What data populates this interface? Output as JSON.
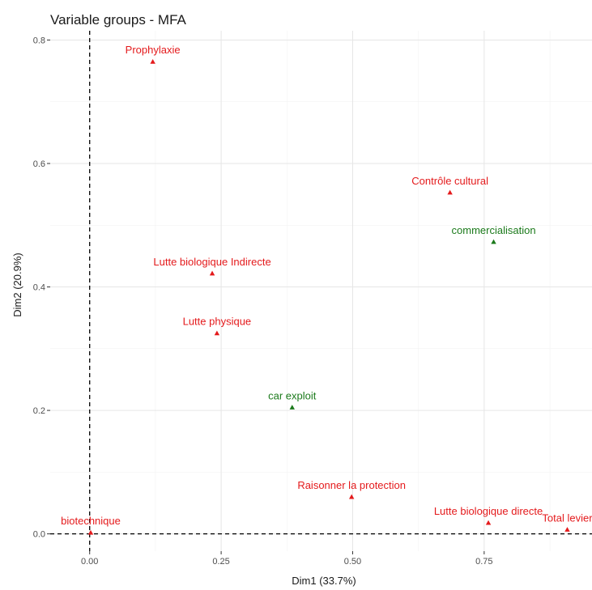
{
  "chart_data": {
    "type": "scatter",
    "title": "Variable groups - MFA",
    "xlabel": "Dim1 (33.7%)",
    "ylabel": "Dim2 (20.9%)",
    "xlim": [
      -0.075,
      0.955
    ],
    "ylim": [
      -0.028,
      0.815
    ],
    "xticks": [
      0.0,
      0.25,
      0.5,
      0.75
    ],
    "xtick_labels": [
      "0.00",
      "0.25",
      "0.50",
      "0.75"
    ],
    "yticks": [
      0.0,
      0.2,
      0.4,
      0.6,
      0.8
    ],
    "ytick_labels": [
      "0.0",
      "0.2",
      "0.4",
      "0.6",
      "0.8"
    ],
    "grid": true,
    "reference_lines": {
      "x": 0,
      "y": 0,
      "style": "dashed"
    },
    "colors": {
      "active": "#e41a1c",
      "supplementary": "#1b7a1b"
    },
    "points": [
      {
        "label": "Prophylaxie",
        "x": 0.12,
        "y": 0.765,
        "group": "active"
      },
      {
        "label": "Contrôle cultural",
        "x": 0.685,
        "y": 0.553,
        "group": "active"
      },
      {
        "label": "commercialisation",
        "x": 0.768,
        "y": 0.473,
        "group": "supplementary"
      },
      {
        "label": "Lutte biologique Indirecte",
        "x": 0.233,
        "y": 0.422,
        "group": "active"
      },
      {
        "label": "Lutte physique",
        "x": 0.242,
        "y": 0.325,
        "group": "active"
      },
      {
        "label": "car exploit",
        "x": 0.385,
        "y": 0.205,
        "group": "supplementary"
      },
      {
        "label": "Raisonner la protection",
        "x": 0.498,
        "y": 0.06,
        "group": "active"
      },
      {
        "label": "Lutte biologique directe",
        "x": 0.758,
        "y": 0.018,
        "group": "active"
      },
      {
        "label": "Total levier",
        "x": 0.908,
        "y": 0.007,
        "group": "active"
      },
      {
        "label": "biotechnique",
        "x": 0.002,
        "y": 0.002,
        "group": "active"
      }
    ]
  }
}
